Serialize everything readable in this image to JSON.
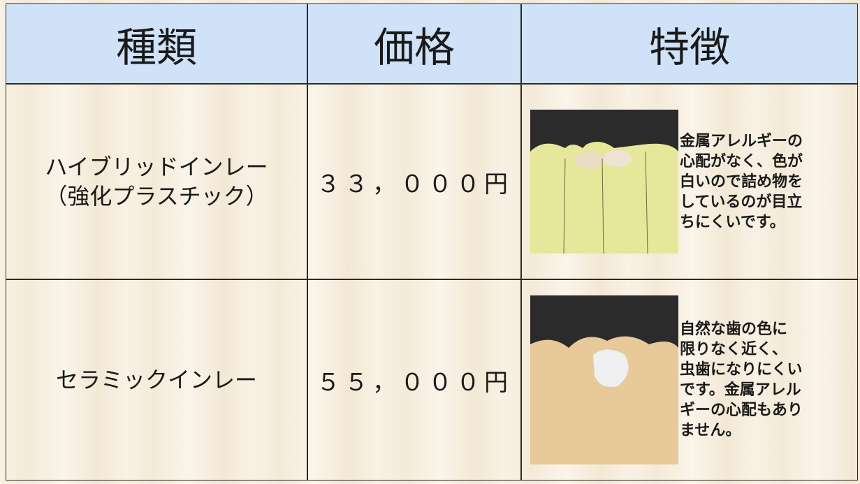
{
  "table": {
    "header": [
      "種類",
      "価格",
      "特徴"
    ],
    "rows": [
      {
        "type": [
          "ハイブリッドインレー",
          "（強化プラスチック）"
        ],
        "price": "３３，０００円",
        "feature": [
          "金属アレルギーの",
          "心配がなく、色が",
          "白いので詰め物を",
          "しているのが目立",
          "ちにくいです。"
        ]
      },
      {
        "type": [
          "セラミックインレー"
        ],
        "price": "５５，０００円",
        "feature": [
          "自然な歯の色に",
          "限りなく近く、",
          "虫歯になりにくい",
          "です。金属アレル",
          "ギーの心配もあり",
          "ません。"
        ]
      }
    ]
  }
}
